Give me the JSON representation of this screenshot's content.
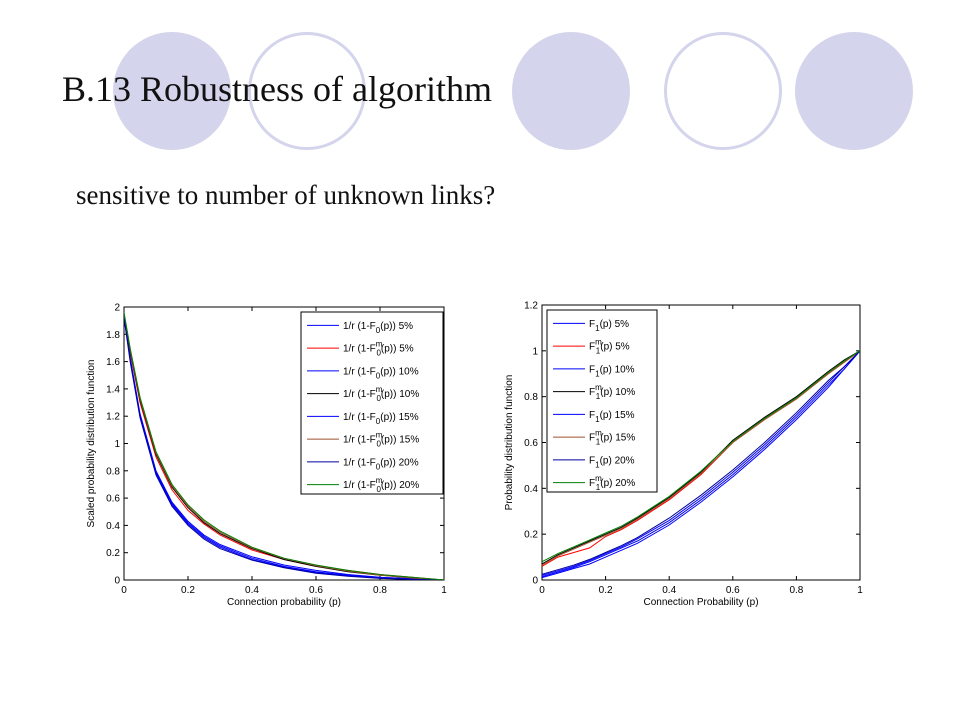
{
  "slide": {
    "title": "B.13 Robustness of algorithm",
    "subtitle": "sensitive to number of unknown links?"
  },
  "colors": {
    "decor_circle": "#d4d4ec",
    "series_blue": "#0000ff",
    "series_red": "#ff0000",
    "series_black": "#000000",
    "series_navy": "#0000a0",
    "series_brown": "#a0522d",
    "series_green": "#008000"
  },
  "chart_data": [
    {
      "type": "line",
      "xlabel": "Connection probability (p)",
      "ylabel": "Scaled probability distribution function",
      "xlim": [
        0,
        1
      ],
      "ylim": [
        0,
        2
      ],
      "xticks": [
        "0",
        "0.2",
        "0.4",
        "0.6",
        "0.8",
        "1"
      ],
      "yticks": [
        "0",
        "0.2",
        "0.4",
        "0.6",
        "0.8",
        "1",
        "1.2",
        "1.4",
        "1.6",
        "1.8",
        "2"
      ],
      "legend_position": "top-right",
      "grid": false,
      "x": [
        0,
        0.02,
        0.05,
        0.1,
        0.15,
        0.2,
        0.25,
        0.3,
        0.4,
        0.5,
        0.6,
        0.7,
        0.8,
        0.9,
        1.0
      ],
      "series": [
        {
          "name": "1/r (1-F0(p)) 5%",
          "legend": {
            "pre": "1/r (1-F",
            "sub": "0",
            "sup": "",
            "post": "(p)) 5%"
          },
          "color": "#0000ff",
          "values": [
            1.95,
            1.62,
            1.22,
            0.8,
            0.57,
            0.43,
            0.33,
            0.26,
            0.17,
            0.11,
            0.07,
            0.04,
            0.02,
            0.01,
            0.0
          ]
        },
        {
          "name": "1/r (1-F0m(p)) 5%",
          "legend": {
            "pre": "1/r (1-F",
            "sub": "0",
            "sup": "m",
            "post": "(p)) 5%"
          },
          "color": "#ff0000",
          "values": [
            1.95,
            1.66,
            1.3,
            0.9,
            0.66,
            0.51,
            0.41,
            0.33,
            0.22,
            0.15,
            0.1,
            0.07,
            0.04,
            0.02,
            0.0
          ]
        },
        {
          "name": "1/r (1-F0(p)) 10%",
          "legend": {
            "pre": "1/r (1-F",
            "sub": "0",
            "sup": "",
            "post": "(p)) 10%"
          },
          "color": "#0000ff",
          "values": [
            1.94,
            1.61,
            1.21,
            0.79,
            0.56,
            0.42,
            0.32,
            0.25,
            0.16,
            0.1,
            0.06,
            0.035,
            0.018,
            0.008,
            0.0
          ]
        },
        {
          "name": "1/r (1-F0m(p)) 10%",
          "legend": {
            "pre": "1/r (1-F",
            "sub": "0",
            "sup": "m",
            "post": "(p)) 10%"
          },
          "color": "#000000",
          "values": [
            1.95,
            1.67,
            1.32,
            0.92,
            0.68,
            0.53,
            0.42,
            0.34,
            0.23,
            0.15,
            0.1,
            0.06,
            0.035,
            0.015,
            0.0
          ]
        },
        {
          "name": "1/r (1-F0(p)) 15%",
          "legend": {
            "pre": "1/r (1-F",
            "sub": "0",
            "sup": "",
            "post": "(p)) 15%"
          },
          "color": "#0000ff",
          "values": [
            1.93,
            1.6,
            1.2,
            0.78,
            0.55,
            0.41,
            0.31,
            0.24,
            0.15,
            0.095,
            0.055,
            0.03,
            0.015,
            0.005,
            0.0
          ]
        },
        {
          "name": "1/r (1-F0m(p)) 15%",
          "legend": {
            "pre": "1/r (1-F",
            "sub": "0",
            "sup": "m",
            "post": "(p)) 15%"
          },
          "color": "#a0522d",
          "values": [
            1.96,
            1.68,
            1.33,
            0.93,
            0.69,
            0.54,
            0.43,
            0.35,
            0.235,
            0.16,
            0.105,
            0.065,
            0.035,
            0.015,
            0.0
          ]
        },
        {
          "name": "1/r (1-F0(p)) 20%",
          "legend": {
            "pre": "1/r (1-F",
            "sub": "0",
            "sup": "",
            "post": "(p)) 20%"
          },
          "color": "#0000a0",
          "values": [
            1.92,
            1.59,
            1.19,
            0.77,
            0.54,
            0.4,
            0.3,
            0.23,
            0.145,
            0.09,
            0.05,
            0.028,
            0.012,
            0.004,
            0.0
          ]
        },
        {
          "name": "1/r (1-F0m(p)) 20%",
          "legend": {
            "pre": "1/r (1-F",
            "sub": "0",
            "sup": "m",
            "post": "(p)) 20%"
          },
          "color": "#008000",
          "values": [
            1.96,
            1.69,
            1.34,
            0.94,
            0.7,
            0.55,
            0.44,
            0.36,
            0.24,
            0.16,
            0.11,
            0.07,
            0.04,
            0.02,
            0.0
          ]
        }
      ]
    },
    {
      "type": "line",
      "xlabel": "Connection Probability (p)",
      "ylabel": "Probability distribution function",
      "xlim": [
        0,
        1
      ],
      "ylim": [
        0,
        1.2
      ],
      "xticks": [
        "0",
        "0.2",
        "0.4",
        "0.6",
        "0.8",
        "1"
      ],
      "yticks": [
        "0",
        "0.2",
        "0.4",
        "0.6",
        "0.8",
        "1",
        "1.2"
      ],
      "legend_position": "top-left",
      "grid": false,
      "x": [
        0,
        0.05,
        0.1,
        0.15,
        0.2,
        0.25,
        0.3,
        0.4,
        0.5,
        0.6,
        0.7,
        0.8,
        0.9,
        0.95,
        1.0
      ],
      "series": [
        {
          "name": "F1(p) 5%",
          "legend": {
            "pre": "F",
            "sub": "1",
            "sup": "",
            "post": "(p) 5%"
          },
          "color": "#0000ff",
          "values": [
            0.01,
            0.03,
            0.05,
            0.07,
            0.1,
            0.13,
            0.16,
            0.24,
            0.34,
            0.45,
            0.57,
            0.7,
            0.84,
            0.92,
            1.0
          ]
        },
        {
          "name": "F1m(p) 5%",
          "legend": {
            "pre": "F",
            "sub": "1",
            "sup": "m",
            "post": "(p) 5%"
          },
          "color": "#ff0000",
          "values": [
            0.06,
            0.1,
            0.12,
            0.14,
            0.19,
            0.22,
            0.26,
            0.35,
            0.46,
            0.6,
            0.7,
            0.79,
            0.9,
            0.95,
            1.0
          ]
        },
        {
          "name": "F1(p) 10%",
          "legend": {
            "pre": "F",
            "sub": "1",
            "sup": "",
            "post": "(p) 10%"
          },
          "color": "#0000ff",
          "values": [
            0.015,
            0.035,
            0.055,
            0.08,
            0.11,
            0.14,
            0.17,
            0.25,
            0.35,
            0.46,
            0.58,
            0.71,
            0.85,
            0.92,
            1.0
          ]
        },
        {
          "name": "F1m(p) 10%",
          "legend": {
            "pre": "F",
            "sub": "1",
            "sup": "m",
            "post": "(p) 10%"
          },
          "color": "#000000",
          "values": [
            0.07,
            0.11,
            0.14,
            0.17,
            0.2,
            0.23,
            0.27,
            0.36,
            0.47,
            0.61,
            0.71,
            0.8,
            0.91,
            0.96,
            1.0
          ]
        },
        {
          "name": "F1(p) 15%",
          "legend": {
            "pre": "F",
            "sub": "1",
            "sup": "",
            "post": "(p) 15%"
          },
          "color": "#0000ff",
          "values": [
            0.02,
            0.04,
            0.06,
            0.085,
            0.115,
            0.145,
            0.18,
            0.26,
            0.36,
            0.47,
            0.59,
            0.72,
            0.86,
            0.93,
            1.0
          ]
        },
        {
          "name": "F1m(p) 15%",
          "legend": {
            "pre": "F",
            "sub": "1",
            "sup": "m",
            "post": "(p) 15%"
          },
          "color": "#a0522d",
          "values": [
            0.065,
            0.105,
            0.135,
            0.165,
            0.195,
            0.225,
            0.265,
            0.355,
            0.465,
            0.6,
            0.7,
            0.79,
            0.9,
            0.95,
            1.0
          ]
        },
        {
          "name": "F1(p) 20%",
          "legend": {
            "pre": "F",
            "sub": "1",
            "sup": "",
            "post": "(p) 20%"
          },
          "color": "#0000a0",
          "values": [
            0.025,
            0.045,
            0.065,
            0.09,
            0.12,
            0.15,
            0.185,
            0.27,
            0.37,
            0.48,
            0.6,
            0.73,
            0.87,
            0.93,
            1.0
          ]
        },
        {
          "name": "F1m(p) 20%",
          "legend": {
            "pre": "F",
            "sub": "1",
            "sup": "m",
            "post": "(p) 20%"
          },
          "color": "#008000",
          "values": [
            0.08,
            0.115,
            0.145,
            0.175,
            0.205,
            0.235,
            0.275,
            0.365,
            0.475,
            0.605,
            0.705,
            0.795,
            0.905,
            0.955,
            1.0
          ]
        }
      ]
    }
  ]
}
